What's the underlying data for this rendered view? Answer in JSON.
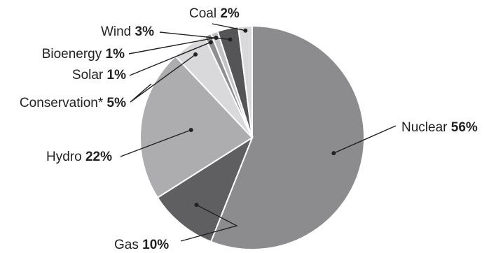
{
  "chart_data": {
    "type": "pie",
    "title": "",
    "start": "top, clockwise",
    "slices": [
      {
        "label": "Nuclear",
        "value": 56,
        "pct": "56%",
        "color": "#8c8c8e"
      },
      {
        "label": "Gas",
        "value": 10,
        "pct": "10%",
        "color": "#5f5f61"
      },
      {
        "label": "Hydro",
        "value": 22,
        "pct": "22%",
        "color": "#adadaf"
      },
      {
        "label": "Conservation*",
        "value": 5,
        "pct": "5%",
        "color": "#d9d9db"
      },
      {
        "label": "Solar",
        "value": 1,
        "pct": "1%",
        "color": "#8e8e90"
      },
      {
        "label": "Bioenergy",
        "value": 1,
        "pct": "1%",
        "color": "#c2c2c4"
      },
      {
        "label": "Wind",
        "value": 3,
        "pct": "3%",
        "color": "#555557"
      },
      {
        "label": "Coal",
        "value": 2,
        "pct": "2%",
        "color": "#d9d9db"
      }
    ]
  }
}
